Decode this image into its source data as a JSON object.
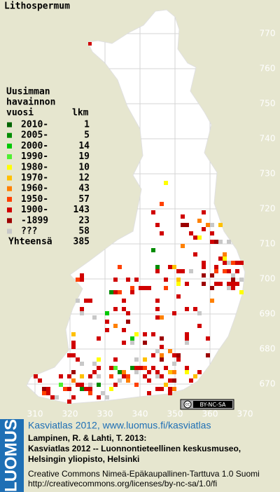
{
  "title": "Lithospermum",
  "legend": {
    "heading": [
      "Uusimman",
      "havainnon",
      "vuosi"
    ],
    "count_header": "lkm",
    "items": [
      {
        "label": "2010-",
        "count": 1,
        "color": "#006400"
      },
      {
        "label": "2005-",
        "count": 5,
        "color": "#008c00"
      },
      {
        "label": "2000-",
        "count": 14,
        "color": "#00c800"
      },
      {
        "label": "1990-",
        "count": 19,
        "color": "#50f030"
      },
      {
        "label": "1980-",
        "count": 10,
        "color": "#ffff00"
      },
      {
        "label": "1970-",
        "count": 12,
        "color": "#ffc000"
      },
      {
        "label": "1960-",
        "count": 43,
        "color": "#ff8000"
      },
      {
        "label": "1950-",
        "count": 57,
        "color": "#ff4000"
      },
      {
        "label": "1900-",
        "count": 143,
        "color": "#d00000"
      },
      {
        "label": "-1899",
        "count": 23,
        "color": "#9c0000"
      },
      {
        "label": "???",
        "count": 58,
        "color": "#c8c8c8"
      }
    ],
    "total_label": "Yhteensä",
    "total": 385
  },
  "grid_north": [
    770,
    760,
    750,
    740,
    730,
    720,
    710,
    700,
    690,
    680,
    670
  ],
  "grid_east": [
    310,
    320,
    330,
    340,
    350,
    360,
    370
  ],
  "license_badge": "BY-NC-SA",
  "footer": {
    "brand": "LUOMUS",
    "link": "Kasviatlas 2012, www.luomus.fi/kasviatlas",
    "citation": [
      "Lampinen, R. & Lahti, T. 2013:",
      "Kasviatlas 2012 -- Luonnontieteellinen keskusmuseo,",
      "Helsingin yliopisto, Helsinki"
    ],
    "license": [
      "Creative Commons Nimeä-Epäkaupallinen-Tarttuva 1.0 Suomi",
      "http://creativecommons.org/licenses/by-nc-sa/1.0/fi"
    ]
  }
}
